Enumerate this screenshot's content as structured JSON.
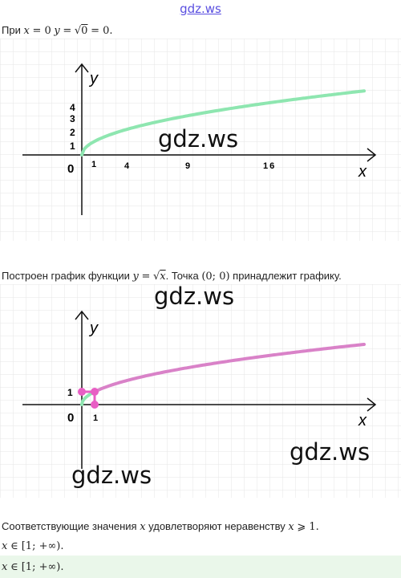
{
  "header": {
    "site_link": "gdz.ws"
  },
  "line1": {
    "prefix": "При",
    "x_var": "x",
    "eq0": "= 0",
    "y_var": "y",
    "eq": "=",
    "radicand": "0",
    "tail": "= 0."
  },
  "graph1": {
    "y_label": "y",
    "x_label": "x",
    "origin": "0",
    "y_ticks": [
      "1",
      "2",
      "3",
      "4"
    ],
    "x_ticks": [
      "1",
      "4",
      "9",
      "16"
    ],
    "watermark": "gdz.ws",
    "curve_color": "#8ee6b0"
  },
  "line2": {
    "text1": "Построен график функции",
    "y_var": "y",
    "eq": "=",
    "radicand": "x",
    "text2": ". Точка",
    "point": "(0; 0)",
    "text3": "принадлежит графику."
  },
  "graph2": {
    "y_label": "y",
    "x_label": "x",
    "origin": "0",
    "y_tick": "1",
    "x_tick": "1",
    "watermarks": [
      "gdz.ws",
      "gdz.ws",
      "gdz.ws"
    ],
    "curve_color": "#d982c8",
    "point_color": "#e85ec4"
  },
  "line3": {
    "text": "Соответствующие значения",
    "x_var": "x",
    "text2": "удовлетворяют неравенству",
    "x_var2": "x",
    "rel": "⩾ 1."
  },
  "line4": {
    "x_var": "x",
    "set": "∈ [1; +∞)."
  },
  "answer": {
    "x_var": "x",
    "set": "∈ [1; +∞)."
  }
}
